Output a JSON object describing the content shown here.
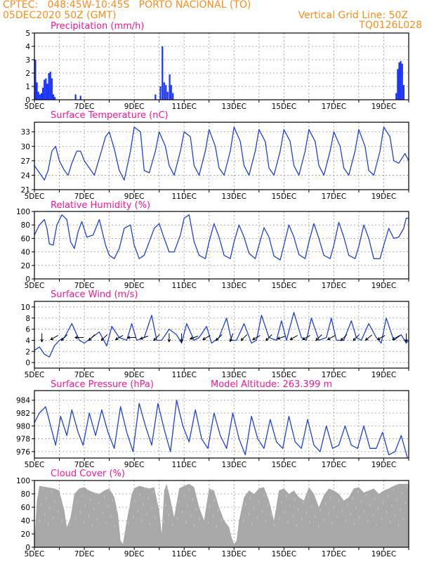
{
  "header": {
    "line1": "CPTEC:   048:45W-10:45S   PORTO NACIONAL (TO)",
    "line2": "05DEC2020 50Z (GMT)",
    "right1": "Vertical Grid Line: 50Z",
    "right2": "TQ0126L028"
  },
  "panels": {
    "precip": {
      "title": "Precipitation  (mm/h)"
    },
    "temp": {
      "title": "Surface Temperature  (nC)"
    },
    "rh": {
      "title": "Relative Humidity  (%)"
    },
    "wind": {
      "title": "Surface Wind  (m/s)"
    },
    "pres": {
      "title": "Surface Pressure  (hPa)",
      "extra": "Model Altitude: 263.399  m"
    },
    "cloud": {
      "title": "Cloud Cover  (%)"
    }
  },
  "colors": {
    "line": "#2040e0",
    "bar": "#1a33ff",
    "cloud": "#a8a8a8",
    "header": "#ff8c1a",
    "title": "#ff1493"
  },
  "chart_data": [
    {
      "type": "bar",
      "name": "precip",
      "x_range": [
        5,
        20
      ],
      "x_ticks": [
        "5DEC",
        "7DEC",
        "9DEC",
        "11DEC",
        "13DEC",
        "15DEC",
        "17DEC",
        "19DEC"
      ],
      "ylim": [
        0,
        5
      ],
      "y_ticks": [
        0,
        1,
        2,
        3,
        4,
        5
      ],
      "bars": [
        [
          5.04,
          3.0
        ],
        [
          5.1,
          1.3
        ],
        [
          5.16,
          0.6
        ],
        [
          5.22,
          0.4
        ],
        [
          5.28,
          0.5
        ],
        [
          5.34,
          0.9
        ],
        [
          5.4,
          1.5
        ],
        [
          5.46,
          1.6
        ],
        [
          5.52,
          1.2
        ],
        [
          5.58,
          2.0
        ],
        [
          5.64,
          2.1
        ],
        [
          5.7,
          1.6
        ],
        [
          5.76,
          0.4
        ],
        [
          5.82,
          0.2
        ],
        [
          6.65,
          0.4
        ],
        [
          6.85,
          0.3
        ],
        [
          9.85,
          0.4
        ],
        [
          10.05,
          1.0
        ],
        [
          10.13,
          4.0
        ],
        [
          10.2,
          1.3
        ],
        [
          10.27,
          1.1
        ],
        [
          10.34,
          0.6
        ],
        [
          10.42,
          1.9
        ],
        [
          10.48,
          1.1
        ],
        [
          10.55,
          0.5
        ],
        [
          19.5,
          0.5
        ],
        [
          19.56,
          2.3
        ],
        [
          19.62,
          2.8
        ],
        [
          19.68,
          2.9
        ],
        [
          19.74,
          2.7
        ],
        [
          19.8,
          1.1
        ]
      ]
    },
    {
      "type": "line",
      "name": "temp",
      "x_range": [
        5,
        20
      ],
      "x_ticks": [
        "5DEC",
        "7DEC",
        "9DEC",
        "11DEC",
        "13DEC",
        "15DEC",
        "17DEC",
        "19DEC"
      ],
      "ylim": [
        21,
        35
      ],
      "y_ticks": [
        21,
        24,
        27,
        30,
        33
      ],
      "x": [
        5.0,
        5.2,
        5.4,
        5.55,
        5.7,
        5.85,
        6.0,
        6.2,
        6.35,
        6.5,
        6.7,
        6.85,
        7.0,
        7.2,
        7.4,
        7.6,
        7.85,
        8.0,
        8.2,
        8.4,
        8.6,
        8.85,
        9.0,
        9.25,
        9.4,
        9.6,
        9.85,
        10.0,
        10.25,
        10.4,
        10.6,
        10.85,
        11.0,
        11.25,
        11.4,
        11.6,
        11.85,
        12.0,
        12.25,
        12.4,
        12.6,
        12.85,
        13.0,
        13.25,
        13.4,
        13.6,
        13.85,
        14.0,
        14.25,
        14.4,
        14.6,
        14.85,
        15.0,
        15.25,
        15.4,
        15.6,
        15.85,
        16.0,
        16.25,
        16.4,
        16.6,
        16.85,
        17.0,
        17.25,
        17.4,
        17.6,
        17.85,
        18.0,
        18.25,
        18.4,
        18.6,
        18.85,
        19.0,
        19.25,
        19.4,
        19.6,
        19.85,
        20.0
      ],
      "values": [
        26,
        24.5,
        23,
        25,
        29,
        30,
        27,
        25,
        24,
        26.5,
        29,
        29,
        27,
        25.5,
        24,
        27.5,
        32,
        33,
        29.5,
        25,
        23,
        29,
        34,
        33,
        25,
        24.5,
        29,
        33,
        30,
        26,
        24,
        29,
        33,
        32,
        26,
        24,
        29,
        33.5,
        30,
        25.5,
        24,
        29,
        34,
        31,
        26,
        24,
        29,
        33.5,
        31,
        25.5,
        24,
        29,
        33.5,
        31,
        26,
        24,
        29,
        33.5,
        31,
        26,
        24,
        29,
        33,
        30,
        25.5,
        24,
        29,
        33.5,
        30,
        25,
        24,
        29,
        34,
        32,
        27,
        26.5,
        28.5,
        27
      ]
    },
    {
      "type": "line",
      "name": "rh",
      "x_range": [
        5,
        20
      ],
      "x_ticks": [
        "5DEC",
        "7DEC",
        "9DEC",
        "11DEC",
        "13DEC",
        "15DEC",
        "17DEC",
        "19DEC"
      ],
      "ylim": [
        0,
        100
      ],
      "y_ticks": [
        0,
        20,
        40,
        60,
        80,
        100
      ],
      "x": [
        5.0,
        5.2,
        5.4,
        5.5,
        5.6,
        5.75,
        5.9,
        6.1,
        6.3,
        6.45,
        6.6,
        6.75,
        6.9,
        7.1,
        7.35,
        7.6,
        7.85,
        8.0,
        8.2,
        8.4,
        8.6,
        8.85,
        9.0,
        9.2,
        9.4,
        9.6,
        9.8,
        10.0,
        10.2,
        10.4,
        10.6,
        10.85,
        11.0,
        11.2,
        11.4,
        11.6,
        11.85,
        12.0,
        12.2,
        12.4,
        12.6,
        12.85,
        13.0,
        13.2,
        13.4,
        13.6,
        13.85,
        14.0,
        14.2,
        14.4,
        14.6,
        14.85,
        15.0,
        15.2,
        15.4,
        15.6,
        15.85,
        16.0,
        16.2,
        16.4,
        16.6,
        16.85,
        17.0,
        17.2,
        17.4,
        17.6,
        17.85,
        18.0,
        18.2,
        18.4,
        18.6,
        18.85,
        19.0,
        19.2,
        19.4,
        19.6,
        19.8,
        19.9,
        20.0
      ],
      "values": [
        65,
        80,
        88,
        75,
        52,
        50,
        80,
        95,
        88,
        55,
        45,
        70,
        85,
        62,
        65,
        88,
        50,
        35,
        30,
        45,
        75,
        80,
        50,
        30,
        35,
        55,
        75,
        82,
        60,
        40,
        40,
        65,
        90,
        95,
        55,
        35,
        30,
        55,
        82,
        62,
        35,
        30,
        55,
        80,
        62,
        38,
        30,
        50,
        76,
        62,
        34,
        28,
        50,
        80,
        62,
        36,
        30,
        55,
        82,
        60,
        35,
        30,
        50,
        84,
        62,
        35,
        30,
        48,
        80,
        60,
        30,
        30,
        50,
        75,
        60,
        62,
        75,
        90,
        90
      ]
    },
    {
      "type": "line",
      "name": "wind",
      "x_range": [
        5,
        20
      ],
      "x_ticks": [
        "5DEC",
        "7DEC",
        "9DEC",
        "11DEC",
        "13DEC",
        "15DEC",
        "17DEC",
        "19DEC"
      ],
      "ylim": [
        -1,
        11
      ],
      "y_ticks": [
        0,
        2,
        4,
        6,
        8,
        10
      ],
      "x": [
        5.0,
        5.2,
        5.4,
        5.6,
        5.8,
        6.0,
        6.2,
        6.5,
        6.8,
        7.0,
        7.3,
        7.6,
        7.9,
        8.1,
        8.4,
        8.7,
        8.9,
        9.1,
        9.4,
        9.7,
        9.9,
        10.1,
        10.4,
        10.7,
        10.9,
        11.1,
        11.4,
        11.6,
        11.9,
        12.1,
        12.4,
        12.7,
        12.9,
        13.1,
        13.4,
        13.7,
        13.9,
        14.1,
        14.4,
        14.7,
        14.9,
        15.1,
        15.4,
        15.7,
        15.9,
        16.1,
        16.4,
        16.7,
        16.9,
        17.1,
        17.4,
        17.7,
        17.9,
        18.1,
        18.4,
        18.7,
        18.9,
        19.1,
        19.4,
        19.7,
        19.9,
        20.0
      ],
      "values": [
        2.2,
        2.8,
        1.5,
        1.0,
        3.0,
        4.0,
        4.5,
        7.0,
        4.0,
        3.5,
        4.5,
        5.5,
        3.0,
        6.5,
        4.5,
        4.0,
        7.0,
        4.0,
        4.5,
        8.5,
        4.0,
        4.0,
        6.0,
        5.0,
        3.5,
        7.0,
        4.0,
        4.5,
        6.5,
        3.5,
        4.5,
        8.0,
        4.0,
        4.0,
        7.0,
        3.5,
        4.0,
        8.5,
        4.5,
        4.0,
        7.5,
        4.0,
        9.0,
        4.5,
        4.0,
        8.0,
        4.0,
        4.5,
        8.0,
        4.0,
        4.0,
        7.5,
        4.5,
        4.0,
        7.0,
        4.5,
        3.5,
        8.0,
        4.0,
        5.0,
        3.5,
        4.0
      ],
      "arrows": [
        [
          5.3,
          270
        ],
        [
          5.8,
          210
        ],
        [
          6.2,
          225
        ],
        [
          6.8,
          180
        ],
        [
          7.3,
          225
        ],
        [
          7.8,
          225
        ],
        [
          8.4,
          210
        ],
        [
          8.9,
          180
        ],
        [
          9.4,
          200
        ],
        [
          9.9,
          225
        ],
        [
          10.4,
          270
        ],
        [
          10.9,
          270
        ],
        [
          11.4,
          200
        ],
        [
          11.9,
          210
        ],
        [
          12.4,
          225
        ],
        [
          12.9,
          250
        ],
        [
          13.4,
          225
        ],
        [
          13.9,
          210
        ],
        [
          14.4,
          225
        ],
        [
          14.9,
          200
        ],
        [
          15.4,
          210
        ],
        [
          15.9,
          210
        ],
        [
          16.4,
          225
        ],
        [
          16.9,
          210
        ],
        [
          17.4,
          225
        ],
        [
          17.9,
          225
        ],
        [
          18.4,
          220
        ],
        [
          18.9,
          210
        ],
        [
          19.5,
          210
        ],
        [
          19.9,
          270
        ]
      ]
    },
    {
      "type": "line",
      "name": "pres",
      "x_range": [
        5,
        20
      ],
      "x_ticks": [
        "5DEC",
        "7DEC",
        "9DEC",
        "11DEC",
        "13DEC",
        "15DEC",
        "17DEC",
        "19DEC"
      ],
      "ylim": [
        975,
        985.5
      ],
      "y_ticks": [
        976,
        978,
        980,
        982,
        984
      ],
      "x": [
        5.0,
        5.2,
        5.45,
        5.65,
        5.85,
        6.05,
        6.3,
        6.5,
        6.75,
        6.95,
        7.2,
        7.45,
        7.7,
        7.95,
        8.2,
        8.45,
        8.7,
        8.95,
        9.2,
        9.45,
        9.7,
        9.95,
        10.2,
        10.45,
        10.7,
        10.95,
        11.2,
        11.45,
        11.7,
        11.95,
        12.2,
        12.45,
        12.7,
        12.95,
        13.2,
        13.45,
        13.7,
        13.95,
        14.2,
        14.45,
        14.7,
        14.95,
        15.2,
        15.45,
        15.7,
        15.95,
        16.2,
        16.45,
        16.7,
        16.95,
        17.2,
        17.45,
        17.7,
        17.95,
        18.2,
        18.45,
        18.7,
        18.95,
        19.2,
        19.45,
        19.7,
        19.95
      ],
      "values": [
        980.5,
        982,
        983,
        980,
        977,
        981.5,
        978.5,
        982.5,
        979,
        977,
        982,
        978.5,
        982.5,
        979,
        976.5,
        983,
        979,
        976,
        983.5,
        980,
        977,
        983.5,
        979.5,
        976,
        984,
        980,
        977.5,
        982.5,
        978,
        976.5,
        982,
        978.5,
        976.5,
        982,
        978,
        975.5,
        981.5,
        978,
        976.5,
        981,
        977.5,
        976.5,
        981.5,
        977.5,
        976.5,
        981,
        977,
        976,
        980,
        976.5,
        977,
        980,
        977,
        976.5,
        980,
        976.5,
        976.5,
        979,
        975.5,
        976,
        978.5,
        975
      ]
    },
    {
      "type": "area",
      "name": "cloud",
      "x_range": [
        5,
        20
      ],
      "x_ticks": [
        "5DEC",
        "7DEC",
        "9DEC",
        "11DEC",
        "13DEC",
        "15DEC",
        "17DEC",
        "19DEC"
      ],
      "ylim": [
        0,
        100
      ],
      "y_ticks": [
        0,
        20,
        40,
        60,
        80,
        100
      ],
      "x": [
        5.0,
        5.1,
        5.2,
        5.5,
        5.8,
        6.0,
        6.2,
        6.3,
        6.45,
        6.6,
        6.8,
        7.0,
        7.2,
        7.4,
        7.6,
        7.8,
        8.0,
        8.2,
        8.35,
        8.45,
        8.55,
        8.7,
        8.9,
        9.0,
        9.2,
        9.4,
        9.6,
        9.8,
        10.0,
        10.1,
        10.2,
        10.3,
        10.4,
        10.6,
        10.8,
        11.0,
        11.2,
        11.4,
        11.6,
        11.8,
        12.0,
        12.2,
        12.4,
        12.6,
        12.8,
        12.9,
        13.0,
        13.1,
        13.2,
        13.4,
        13.6,
        13.8,
        14.0,
        14.2,
        14.4,
        14.6,
        14.8,
        15.0,
        15.2,
        15.4,
        15.6,
        15.8,
        16.0,
        16.2,
        16.4,
        16.6,
        16.8,
        17.0,
        17.2,
        17.4,
        17.6,
        17.8,
        18.0,
        18.2,
        18.4,
        18.6,
        18.8,
        19.0,
        19.2,
        19.4,
        19.6,
        19.8,
        20.0
      ],
      "values": [
        10,
        70,
        92,
        90,
        88,
        85,
        55,
        30,
        45,
        80,
        88,
        90,
        85,
        82,
        80,
        85,
        88,
        75,
        50,
        10,
        5,
        40,
        80,
        88,
        92,
        90,
        88,
        90,
        55,
        20,
        85,
        95,
        80,
        45,
        88,
        92,
        95,
        90,
        60,
        40,
        88,
        85,
        60,
        40,
        30,
        15,
        5,
        10,
        40,
        75,
        85,
        80,
        88,
        90,
        70,
        40,
        85,
        88,
        80,
        85,
        75,
        70,
        90,
        80,
        60,
        78,
        88,
        85,
        80,
        70,
        75,
        88,
        90,
        82,
        85,
        88,
        80,
        85,
        88,
        92,
        95,
        95,
        95
      ]
    }
  ]
}
